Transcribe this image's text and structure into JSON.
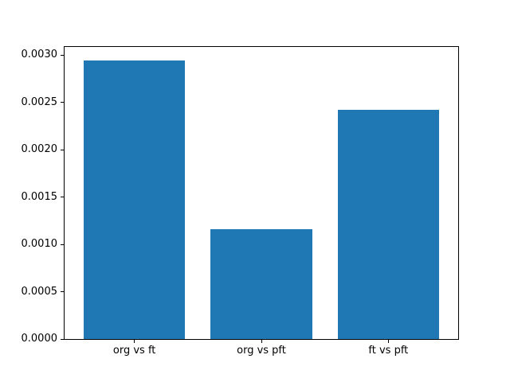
{
  "figure": {
    "background": "#ffffff",
    "axes_edge_color": "#000000",
    "text_color": "#000000"
  },
  "chart_data": {
    "type": "bar",
    "title": "",
    "xlabel": "",
    "ylabel": "",
    "categories": [
      "org vs ft",
      "org vs pft",
      "ft vs pft"
    ],
    "values": [
      0.00294,
      0.00116,
      0.00242
    ],
    "bar_color": "#1f77b4",
    "bar_width": 0.8,
    "xlim": [
      -0.55,
      2.55
    ],
    "ylim": [
      0,
      0.003087
    ],
    "yticks": [
      0.0,
      0.0005,
      0.001,
      0.0015,
      0.002,
      0.0025,
      0.003
    ],
    "ytick_labels": [
      "0.0000",
      "0.0005",
      "0.0010",
      "0.0015",
      "0.0020",
      "0.0025",
      "0.0030"
    ],
    "grid": false,
    "legend": null
  }
}
